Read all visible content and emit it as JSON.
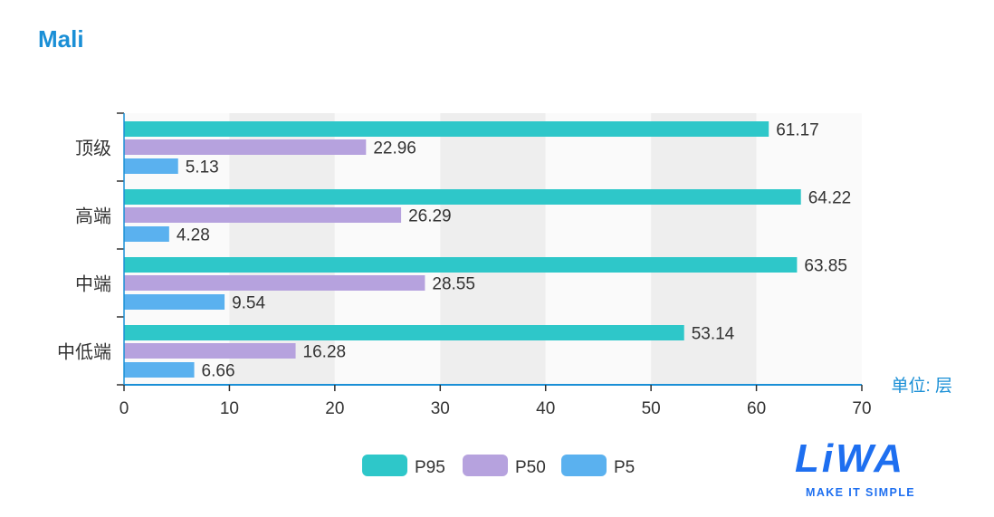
{
  "title": "Mali",
  "chart_data": {
    "type": "bar",
    "orientation": "horizontal",
    "title": "Mali",
    "categories": [
      "顶级",
      "高端",
      "中端",
      "中低端"
    ],
    "series": [
      {
        "name": "P95",
        "color": "#2ec7c9",
        "values": [
          61.17,
          64.22,
          63.85,
          53.14
        ]
      },
      {
        "name": "P50",
        "color": "#b6a2de",
        "values": [
          22.96,
          26.29,
          28.55,
          16.28
        ]
      },
      {
        "name": "P5",
        "color": "#5ab1ef",
        "values": [
          5.13,
          4.28,
          9.54,
          6.66
        ]
      }
    ],
    "xlim": [
      0,
      70
    ],
    "xticks": [
      "0",
      "10",
      "20",
      "30",
      "40",
      "50",
      "60",
      "70"
    ],
    "xlabel": "单位: 层",
    "legend": "bottom-center",
    "grid": "alternating split areas"
  },
  "logo": {
    "mark": "LiWA",
    "tagline": "MAKE IT SIMPLE"
  }
}
